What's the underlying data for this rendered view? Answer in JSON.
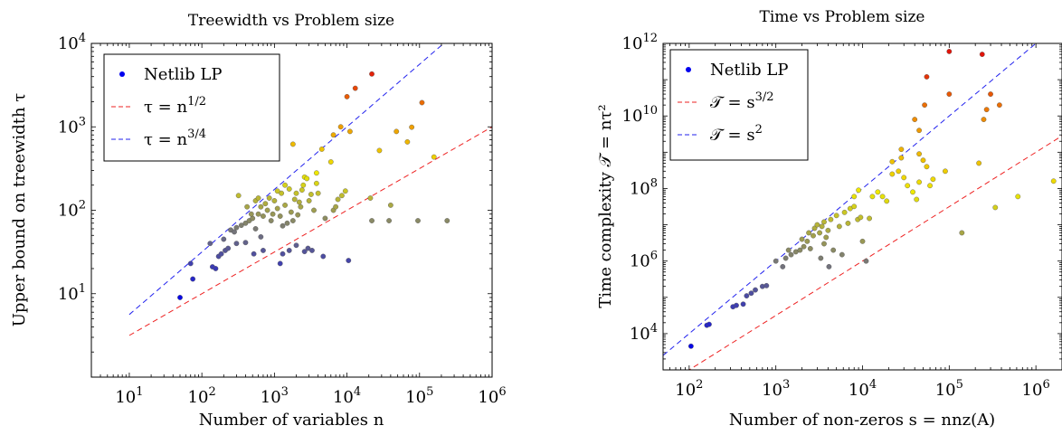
{
  "chart_data": [
    {
      "type": "scatter",
      "title": "Treewidth vs Problem size",
      "xlabel": "Number of variables n",
      "ylabel": "Upper bound on treewidth τ",
      "xscale": "log",
      "yscale": "log",
      "xlim": [
        3,
        1000000
      ],
      "ylim": [
        1,
        10000
      ],
      "grid": false,
      "legend_position": "top-left",
      "xticks": [
        {
          "value": 10,
          "base": "10",
          "exp": "1"
        },
        {
          "value": 100,
          "base": "10",
          "exp": "2"
        },
        {
          "value": 1000,
          "base": "10",
          "exp": "3"
        },
        {
          "value": 10000,
          "base": "10",
          "exp": "4"
        },
        {
          "value": 100000,
          "base": "10",
          "exp": "5"
        },
        {
          "value": 1000000,
          "base": "10",
          "exp": "6"
        }
      ],
      "yticks": [
        {
          "value": 10,
          "base": "10",
          "exp": "1"
        },
        {
          "value": 100,
          "base": "10",
          "exp": "2"
        },
        {
          "value": 1000,
          "base": "10",
          "exp": "3"
        },
        {
          "value": 10000,
          "base": "10",
          "exp": "4"
        }
      ],
      "legend": [
        {
          "kind": "marker",
          "label": "Netlib LP",
          "color": "#0000ee"
        },
        {
          "kind": "line",
          "label_main": "τ = n",
          "label_sup": "1/2",
          "color": "#ee2222"
        },
        {
          "kind": "line",
          "label_main": "τ = n",
          "label_sup": "3/4",
          "color": "#2222ee"
        }
      ],
      "reference_lines": [
        {
          "label": "τ = n^{1/2}",
          "exponent": 0.5,
          "coef": 1,
          "x_range": [
            10,
            1000000
          ],
          "color": "#ee2222"
        },
        {
          "label": "τ = n^{3/4}",
          "exponent": 0.75,
          "coef": 1,
          "x_range": [
            10,
            1000000
          ],
          "color": "#2222ee"
        }
      ],
      "series": [
        {
          "name": "Netlib LP",
          "points": [
            [
              50,
              9
            ],
            [
              75,
              15
            ],
            [
              70,
              23
            ],
            [
              140,
              21
            ],
            [
              155,
              20
            ],
            [
              170,
              28
            ],
            [
              185,
              30
            ],
            [
              210,
              33
            ],
            [
              230,
              35
            ],
            [
              300,
              40
            ],
            [
              400,
              41
            ],
            [
              650,
              48
            ],
            [
              1200,
              23
            ],
            [
              1300,
              30
            ],
            [
              1600,
              33
            ],
            [
              2000,
              38
            ],
            [
              2600,
              32
            ],
            [
              2900,
              35
            ],
            [
              3300,
              33
            ],
            [
              4700,
              28
            ],
            [
              10500,
              25
            ],
            [
              520,
              30
            ],
            [
              700,
              33
            ],
            [
              130,
              40
            ],
            [
              200,
              45
            ],
            [
              250,
              58
            ],
            [
              280,
              55
            ],
            [
              300,
              62
            ],
            [
              350,
              66
            ],
            [
              400,
              70
            ],
            [
              450,
              75
            ],
            [
              500,
              80
            ],
            [
              550,
              60
            ],
            [
              600,
              90
            ],
            [
              650,
              110
            ],
            [
              700,
              85
            ],
            [
              750,
              120
            ],
            [
              800,
              100
            ],
            [
              850,
              140
            ],
            [
              900,
              75
            ],
            [
              950,
              90
            ],
            [
              1000,
              130
            ],
            [
              1100,
              105
            ],
            [
              1200,
              85
            ],
            [
              1250,
              160
            ],
            [
              1300,
              65
            ],
            [
              1400,
              115
            ],
            [
              1500,
              70
            ],
            [
              1600,
              180
            ],
            [
              1700,
              95
            ],
            [
              1800,
              75
            ],
            [
              1900,
              135
            ],
            [
              2000,
              160
            ],
            [
              2100,
              88
            ],
            [
              2200,
              125
            ],
            [
              2300,
              110
            ],
            [
              2400,
              175
            ],
            [
              2500,
              200
            ],
            [
              2600,
              250
            ],
            [
              2800,
              240
            ],
            [
              3000,
              130
            ],
            [
              3200,
              155
            ],
            [
              3500,
              100
            ],
            [
              3800,
              210
            ],
            [
              4000,
              160
            ],
            [
              5000,
              80
            ],
            [
              6500,
              100
            ],
            [
              7000,
              110
            ],
            [
              7500,
              135
            ],
            [
              8500,
              150
            ],
            [
              9500,
              170
            ],
            [
              320,
              150
            ],
            [
              420,
              110
            ],
            [
              480,
              90
            ],
            [
              550,
              130
            ],
            [
              600,
              140
            ],
            [
              1100,
              170
            ],
            [
              1400,
              200
            ],
            [
              3800,
              280
            ],
            [
              22000,
              75
            ],
            [
              38000,
              75
            ],
            [
              40000,
              115
            ],
            [
              95000,
              75
            ],
            [
              240000,
              75
            ],
            [
              21000,
              140
            ],
            [
              1800,
              620
            ],
            [
              4500,
              540
            ],
            [
              6500,
              800
            ],
            [
              8200,
              1000
            ],
            [
              11000,
              880
            ],
            [
              6000,
              380
            ],
            [
              28000,
              520
            ],
            [
              48000,
              880
            ],
            [
              68000,
              660
            ],
            [
              78000,
              990
            ],
            [
              158000,
              435
            ],
            [
              10000,
              2300
            ],
            [
              13000,
              2900
            ],
            [
              22000,
              4300
            ],
            [
              108000,
              1950
            ]
          ]
        }
      ]
    },
    {
      "type": "scatter",
      "title": "Time vs Problem size",
      "xlabel": "Number of non-zeros s = nnz(A)",
      "ylabel": "Time complexity 𝒯 = nτ²",
      "xscale": "log",
      "yscale": "log",
      "xlim": [
        50,
        2000000
      ],
      "ylim": [
        1000,
        1000000000000
      ],
      "grid": false,
      "legend_position": "top-left",
      "xticks": [
        {
          "value": 100,
          "base": "10",
          "exp": "2"
        },
        {
          "value": 1000,
          "base": "10",
          "exp": "3"
        },
        {
          "value": 10000,
          "base": "10",
          "exp": "4"
        },
        {
          "value": 100000,
          "base": "10",
          "exp": "5"
        },
        {
          "value": 1000000,
          "base": "10",
          "exp": "6"
        }
      ],
      "yticks": [
        {
          "value": 10000,
          "base": "10",
          "exp": "4"
        },
        {
          "value": 1000000,
          "base": "10",
          "exp": "6"
        },
        {
          "value": 100000000,
          "base": "10",
          "exp": "8"
        },
        {
          "value": 10000000000,
          "base": "10",
          "exp": "10"
        },
        {
          "value": 1000000000000,
          "base": "10",
          "exp": "12"
        }
      ],
      "legend": [
        {
          "kind": "marker",
          "label": "Netlib LP",
          "color": "#0000ee"
        },
        {
          "kind": "line",
          "label_main": "𝒯 = s",
          "label_sup": "3/2",
          "color": "#ee2222"
        },
        {
          "kind": "line",
          "label_main": "𝒯 = s",
          "label_sup": "2",
          "color": "#2222ee"
        }
      ],
      "reference_lines": [
        {
          "label": "𝒯 = s^{3/2}",
          "exponent": 1.5,
          "coef": 1,
          "x_range": [
            50,
            2000000
          ],
          "color": "#ee2222"
        },
        {
          "label": "𝒯 = s^{2}",
          "exponent": 2,
          "coef": 1,
          "x_range": [
            50,
            2000000
          ],
          "color": "#2222ee"
        }
      ],
      "series": [
        {
          "name": "Netlib LP",
          "points": [
            [
              105,
              4500
            ],
            [
              160,
              17000
            ],
            [
              170,
              18000
            ],
            [
              320,
              55000
            ],
            [
              350,
              60000
            ],
            [
              420,
              65000
            ],
            [
              460,
              110000
            ],
            [
              520,
              130000
            ],
            [
              580,
              160000
            ],
            [
              700,
              200000
            ],
            [
              780,
              210000
            ],
            [
              1000,
              1000000
            ],
            [
              1200,
              700000
            ],
            [
              1300,
              1200000
            ],
            [
              1500,
              1500000
            ],
            [
              1700,
              1800000
            ],
            [
              1900,
              2000000
            ],
            [
              2100,
              2500000
            ],
            [
              2300,
              3500000
            ],
            [
              2500,
              2200000
            ],
            [
              2700,
              5000000
            ],
            [
              2800,
              8000000
            ],
            [
              3000,
              10000000
            ],
            [
              3200,
              6000000
            ],
            [
              3400,
              9000000
            ],
            [
              3600,
              12000000
            ],
            [
              3800,
              4500000
            ],
            [
              4000,
              7000000
            ],
            [
              4300,
              14000000
            ],
            [
              4600,
              2000000
            ],
            [
              5000,
              18000000
            ],
            [
              5400,
              9000000
            ],
            [
              5800,
              1500000
            ],
            [
              6200,
              22000000
            ],
            [
              6800,
              11000000
            ],
            [
              7200,
              28000000
            ],
            [
              8000,
              32000000
            ],
            [
              8800,
              14000000
            ],
            [
              9500,
              16000000
            ],
            [
              10000,
              3500000
            ],
            [
              11000,
              1000000
            ],
            [
              12000,
              15000000
            ],
            [
              3300,
              1200000
            ],
            [
              4100,
              700000
            ],
            [
              2000,
              4000000
            ],
            [
              1400,
              2000000
            ],
            [
              2400,
              6000000
            ],
            [
              3600,
              3000000
            ],
            [
              8000,
              60000000
            ],
            [
              9000,
              90000000
            ],
            [
              13000,
              60000000
            ],
            [
              15000,
              80000000
            ],
            [
              17000,
              60000000
            ],
            [
              19000,
              45000000
            ],
            [
              22000,
              250000000
            ],
            [
              26000,
              300000000
            ],
            [
              30000,
              200000000
            ],
            [
              33000,
              120000000
            ],
            [
              38000,
              80000000
            ],
            [
              42000,
              50000000
            ],
            [
              45000,
              150000000
            ],
            [
              55000,
              400000000
            ],
            [
              60000,
              120000000
            ],
            [
              65000,
              180000000
            ],
            [
              90000,
              300000000
            ],
            [
              22000,
              550000000
            ],
            [
              28000,
              700000000
            ],
            [
              45000,
              900000000
            ],
            [
              50000,
              600000000
            ],
            [
              140000,
              6000000
            ],
            [
              340000,
              30000000
            ],
            [
              620000,
              60000000
            ],
            [
              1600000,
              160000000
            ],
            [
              220000,
              500000000
            ],
            [
              28000,
              1200000000
            ],
            [
              40000,
              8000000000
            ],
            [
              45000,
              4000000000
            ],
            [
              52000,
              20000000000
            ],
            [
              100000,
              40000000000
            ],
            [
              250000,
              8000000000
            ],
            [
              300000,
              40000000000
            ],
            [
              380000,
              20000000000
            ],
            [
              100000,
              600000000000
            ],
            [
              240000,
              500000000000
            ],
            [
              55000,
              120000000000
            ],
            [
              270000,
              15000000000
            ]
          ]
        }
      ]
    }
  ]
}
